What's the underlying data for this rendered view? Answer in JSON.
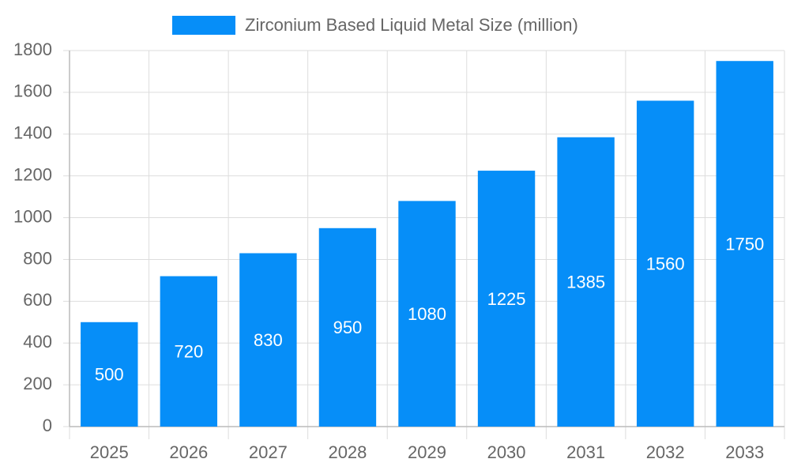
{
  "chart_data": {
    "type": "bar",
    "categories": [
      "2025",
      "2026",
      "2027",
      "2028",
      "2029",
      "2030",
      "2031",
      "2032",
      "2033"
    ],
    "series": [
      {
        "name": "Zirconium Based Liquid Metal Size (million)",
        "color": "#068ef8",
        "values": [
          500,
          720,
          830,
          950,
          1080,
          1225,
          1385,
          1560,
          1750
        ]
      }
    ],
    "ylim": [
      0,
      1800
    ],
    "yticks": [
      0,
      200,
      400,
      600,
      800,
      1000,
      1200,
      1400,
      1600,
      1800
    ],
    "grid": true,
    "legend": "top",
    "data_labels": true
  }
}
